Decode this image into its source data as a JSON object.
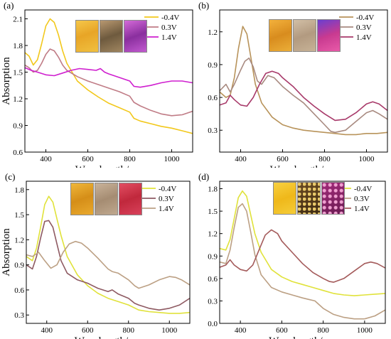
{
  "figure_colors": {
    "yellow": "#F2C81C",
    "brown": "#C89A5A",
    "magenta": "#CF1FCF",
    "mauve": "#C07C86",
    "tan": "#B8935A",
    "plum": "#A83A6A",
    "lime": "#E0E23A",
    "taupe": "#A88A80",
    "darkmauve": "#8E5A62",
    "lightbrown": "#BCA084",
    "rose": "#A45B5B"
  },
  "chart_data": [
    {
      "type": "line",
      "panel_label": "(a)",
      "xlabel": "Wavelength/nm",
      "ylabel": "Absorption",
      "xlim": [
        300,
        1100
      ],
      "ylim": [
        0.6,
        2.2
      ],
      "xticks": [
        400,
        600,
        800,
        1000
      ],
      "yticks": [
        0.6,
        0.9,
        1.2,
        1.5,
        1.8,
        2.1
      ],
      "ytick_labels": [
        "0.6",
        "0.9",
        "1.2",
        "1.5",
        "1.8",
        "2.1"
      ],
      "legend_position": "top-right",
      "photos": [
        "photo-yellow",
        "photo-brown",
        "photo-purple"
      ],
      "series": [
        {
          "name": "-0.4V",
          "color_key": "yellow",
          "x": [
            300,
            320,
            340,
            360,
            380,
            400,
            420,
            440,
            460,
            480,
            500,
            550,
            600,
            650,
            700,
            750,
            800,
            820,
            850,
            900,
            950,
            1000,
            1050,
            1100
          ],
          "y": [
            1.72,
            1.68,
            1.58,
            1.64,
            1.82,
            2.02,
            2.1,
            2.06,
            1.92,
            1.74,
            1.6,
            1.4,
            1.3,
            1.22,
            1.15,
            1.1,
            1.05,
            0.98,
            0.95,
            0.92,
            0.89,
            0.87,
            0.84,
            0.81
          ]
        },
        {
          "name": "0.3V",
          "color_key": "mauve",
          "x": [
            300,
            320,
            340,
            360,
            380,
            400,
            420,
            440,
            460,
            480,
            500,
            550,
            600,
            650,
            700,
            750,
            800,
            820,
            850,
            900,
            950,
            1000,
            1050,
            1100
          ],
          "y": [
            1.58,
            1.55,
            1.5,
            1.52,
            1.6,
            1.7,
            1.76,
            1.74,
            1.67,
            1.58,
            1.52,
            1.45,
            1.4,
            1.36,
            1.32,
            1.28,
            1.23,
            1.16,
            1.12,
            1.07,
            1.03,
            1.01,
            1.02,
            1.06
          ]
        },
        {
          "name": "1.4V",
          "color_key": "magenta",
          "x": [
            300,
            330,
            360,
            400,
            440,
            480,
            520,
            560,
            600,
            640,
            660,
            680,
            700,
            750,
            800,
            820,
            850,
            900,
            950,
            1000,
            1050,
            1100
          ],
          "y": [
            1.55,
            1.52,
            1.5,
            1.47,
            1.46,
            1.49,
            1.52,
            1.54,
            1.53,
            1.52,
            1.54,
            1.5,
            1.48,
            1.44,
            1.4,
            1.34,
            1.33,
            1.35,
            1.38,
            1.4,
            1.4,
            1.38
          ]
        }
      ]
    },
    {
      "type": "line",
      "panel_label": "(b)",
      "xlabel": "Wavelength/nm",
      "ylabel": "",
      "xlim": [
        300,
        1100
      ],
      "ylim": [
        0.1,
        1.4
      ],
      "xticks": [
        400,
        600,
        800,
        1000
      ],
      "yticks": [
        0.3,
        0.6,
        0.9,
        1.2
      ],
      "ytick_labels": [
        "0.3",
        "0.6",
        "0.9",
        "1.2"
      ],
      "legend_position": "top-right",
      "photos": [
        "photo-orange",
        "photo-beige",
        "photo-violet"
      ],
      "series": [
        {
          "name": "-0.4V",
          "color_key": "tan",
          "x": [
            300,
            330,
            350,
            370,
            390,
            410,
            430,
            450,
            470,
            500,
            550,
            600,
            650,
            700,
            750,
            800,
            850,
            900,
            950,
            1000,
            1050,
            1100
          ],
          "y": [
            0.65,
            0.6,
            0.62,
            0.78,
            1.05,
            1.25,
            1.18,
            0.95,
            0.72,
            0.55,
            0.42,
            0.35,
            0.32,
            0.3,
            0.29,
            0.28,
            0.27,
            0.26,
            0.26,
            0.27,
            0.27,
            0.28
          ]
        },
        {
          "name": "0.3V",
          "color_key": "taupe",
          "x": [
            300,
            330,
            350,
            370,
            400,
            420,
            440,
            460,
            480,
            500,
            530,
            560,
            600,
            650,
            700,
            750,
            800,
            830,
            850,
            900,
            950,
            1000,
            1030,
            1060,
            1100
          ],
          "y": [
            0.66,
            0.72,
            0.65,
            0.72,
            0.85,
            0.93,
            0.96,
            0.88,
            0.75,
            0.72,
            0.8,
            0.78,
            0.7,
            0.62,
            0.55,
            0.45,
            0.35,
            0.29,
            0.28,
            0.3,
            0.38,
            0.46,
            0.48,
            0.45,
            0.4
          ]
        },
        {
          "name": "1.4V",
          "color_key": "plum",
          "x": [
            300,
            330,
            350,
            370,
            400,
            430,
            460,
            490,
            520,
            550,
            580,
            600,
            650,
            700,
            750,
            800,
            850,
            900,
            950,
            1000,
            1030,
            1060,
            1100
          ],
          "y": [
            0.53,
            0.55,
            0.62,
            0.58,
            0.53,
            0.52,
            0.6,
            0.72,
            0.82,
            0.84,
            0.82,
            0.78,
            0.7,
            0.6,
            0.52,
            0.45,
            0.39,
            0.4,
            0.46,
            0.54,
            0.56,
            0.54,
            0.48
          ]
        }
      ]
    },
    {
      "type": "line",
      "panel_label": "(c)",
      "xlabel": "Wavelength/nm",
      "ylabel": "Absorption",
      "xlim": [
        300,
        1100
      ],
      "ylim": [
        0.2,
        1.9
      ],
      "xticks": [
        400,
        600,
        800,
        1000
      ],
      "yticks": [
        0.3,
        0.6,
        0.9,
        1.2,
        1.5,
        1.8
      ],
      "ytick_labels": [
        "0.3",
        "0.6",
        "0.9",
        "1.2",
        "1.5",
        "1.8"
      ],
      "legend_position": "top-right",
      "photos": [
        "photo-amber",
        "photo-sand",
        "photo-red"
      ],
      "series": [
        {
          "name": "-0.4V",
          "color_key": "lime",
          "x": [
            300,
            330,
            350,
            370,
            390,
            410,
            430,
            450,
            470,
            500,
            550,
            600,
            650,
            700,
            750,
            800,
            850,
            900,
            950,
            1000,
            1050,
            1100
          ],
          "y": [
            1.0,
            0.95,
            1.1,
            1.35,
            1.62,
            1.72,
            1.65,
            1.45,
            1.25,
            1.0,
            0.78,
            0.65,
            0.56,
            0.5,
            0.46,
            0.42,
            0.36,
            0.34,
            0.33,
            0.32,
            0.32,
            0.33
          ]
        },
        {
          "name": "0.3V",
          "color_key": "darkmauve",
          "x": [
            300,
            330,
            350,
            370,
            390,
            410,
            430,
            450,
            470,
            500,
            550,
            600,
            650,
            700,
            720,
            750,
            800,
            830,
            850,
            900,
            950,
            1000,
            1050,
            1100
          ],
          "y": [
            0.9,
            0.85,
            1.0,
            1.22,
            1.42,
            1.43,
            1.35,
            1.15,
            0.95,
            0.8,
            0.72,
            0.68,
            0.62,
            0.58,
            0.6,
            0.55,
            0.5,
            0.44,
            0.42,
            0.38,
            0.36,
            0.38,
            0.42,
            0.5
          ]
        },
        {
          "name": "1.4V",
          "color_key": "lightbrown",
          "x": [
            300,
            330,
            360,
            390,
            420,
            450,
            480,
            510,
            540,
            570,
            600,
            650,
            700,
            720,
            750,
            800,
            830,
            850,
            900,
            950,
            1000,
            1030,
            1060,
            1100
          ],
          "y": [
            1.02,
            1.0,
            1.05,
            0.95,
            0.86,
            0.9,
            1.05,
            1.15,
            1.18,
            1.16,
            1.1,
            0.98,
            0.85,
            0.82,
            0.8,
            0.72,
            0.65,
            0.62,
            0.66,
            0.72,
            0.76,
            0.75,
            0.72,
            0.66
          ]
        }
      ]
    },
    {
      "type": "line",
      "panel_label": "(d)",
      "xlabel": "Wavelength/nm",
      "ylabel": "",
      "xlim": [
        300,
        1100
      ],
      "ylim": [
        0.0,
        1.9
      ],
      "xticks": [
        400,
        600,
        800,
        1000
      ],
      "yticks": [
        0.0,
        0.3,
        0.6,
        0.9,
        1.2,
        1.5,
        1.8
      ],
      "ytick_labels": [
        "0.0",
        "0.3",
        "0.6",
        "0.9",
        "1.2",
        "1.5",
        "1.8"
      ],
      "legend_position": "top-right",
      "photos": [
        "photo-gold",
        "photo-speckle",
        "photo-pink"
      ],
      "series": [
        {
          "name": "-0.4V",
          "color_key": "lime",
          "x": [
            300,
            330,
            350,
            370,
            390,
            410,
            430,
            450,
            470,
            500,
            550,
            600,
            650,
            700,
            750,
            800,
            850,
            900,
            950,
            1000,
            1050,
            1100
          ],
          "y": [
            1.0,
            0.98,
            1.12,
            1.4,
            1.68,
            1.77,
            1.7,
            1.45,
            1.2,
            0.95,
            0.72,
            0.62,
            0.56,
            0.52,
            0.48,
            0.44,
            0.4,
            0.38,
            0.37,
            0.38,
            0.39,
            0.4
          ]
        },
        {
          "name": "0.3V",
          "color_key": "lightbrown",
          "x": [
            300,
            330,
            350,
            370,
            390,
            410,
            430,
            450,
            470,
            500,
            550,
            600,
            650,
            700,
            730,
            760,
            800,
            850,
            900,
            950,
            1000,
            1050,
            1100
          ],
          "y": [
            0.82,
            0.8,
            0.98,
            1.28,
            1.55,
            1.6,
            1.5,
            1.22,
            0.92,
            0.65,
            0.48,
            0.42,
            0.38,
            0.34,
            0.32,
            0.3,
            0.2,
            0.12,
            0.08,
            0.06,
            0.06,
            0.1,
            0.18
          ]
        },
        {
          "name": "1.4V",
          "color_key": "rose",
          "x": [
            300,
            330,
            350,
            370,
            400,
            430,
            460,
            490,
            520,
            550,
            580,
            600,
            650,
            700,
            750,
            800,
            830,
            850,
            900,
            950,
            1000,
            1030,
            1060,
            1100
          ],
          "y": [
            0.75,
            0.78,
            0.85,
            0.78,
            0.72,
            0.7,
            0.78,
            0.98,
            1.18,
            1.25,
            1.2,
            1.1,
            0.95,
            0.8,
            0.68,
            0.6,
            0.56,
            0.55,
            0.6,
            0.7,
            0.8,
            0.82,
            0.8,
            0.74
          ]
        }
      ]
    }
  ]
}
